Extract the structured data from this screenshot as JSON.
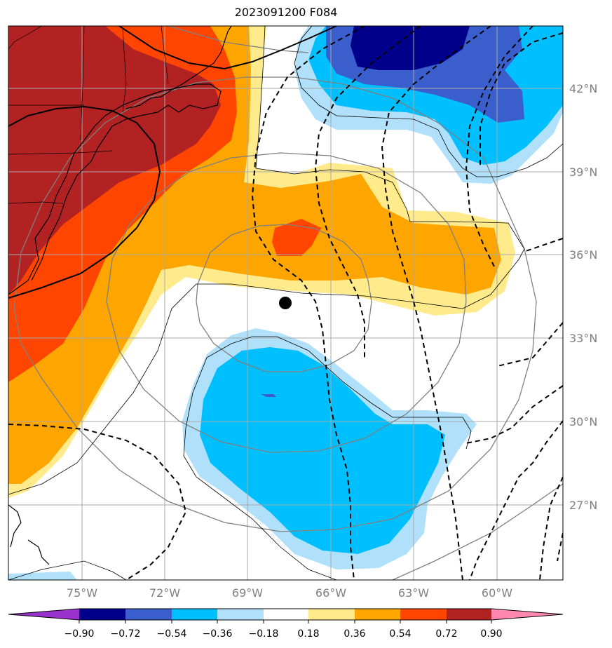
{
  "title": "2023091200 F084",
  "colors": {
    "neg090": "#9932cc",
    "neg072": "#00008b",
    "neg054": "#3a5fcd",
    "neg036": "#00bfff",
    "neg018": "#b0e0fa",
    "zero": "#ffffff",
    "pos018": "#ffeb8b",
    "pos036": "#ffa500",
    "pos054": "#ff4500",
    "pos072": "#b22222",
    "pos090": "#ff88b0",
    "grid": "#a9a9a9",
    "ring": "#808080",
    "coast": "#000000"
  },
  "lat_labels": [
    "42°N",
    "39°N",
    "36°N",
    "33°N",
    "30°N",
    "27°N"
  ],
  "lon_labels": [
    "75°W",
    "72°W",
    "69°W",
    "66°W",
    "63°W",
    "60°W"
  ],
  "colorbar": {
    "ticks": [
      "−0.90",
      "−0.72",
      "−0.54",
      "−0.36",
      "−0.18",
      "0.18",
      "0.36",
      "0.54",
      "0.72",
      "0.90"
    ]
  },
  "storm_center": {
    "lon": -67.7,
    "lat": 34.2
  }
}
